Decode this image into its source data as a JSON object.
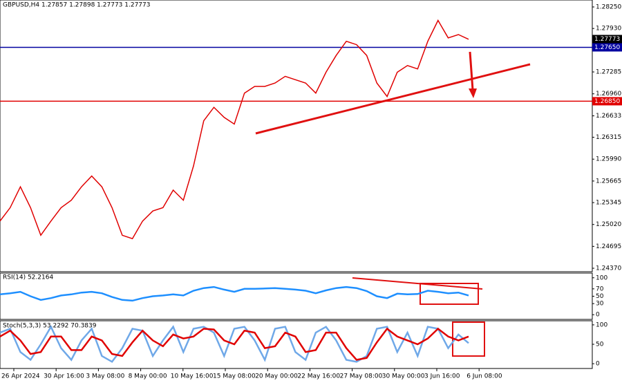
{
  "chart_data": [
    {
      "type": "line",
      "title": "GBPUSD,H4 1.27857 1.27898 1.27773 1.27773",
      "ylim": [
        1.24319,
        1.28353
      ],
      "yticks": [
        {
          "value": 1.2825,
          "label": "1.28250"
        },
        {
          "value": 1.2793,
          "label": "1.27930"
        },
        {
          "value": 1.27285,
          "label": "1.27285"
        },
        {
          "value": 1.2696,
          "label": "1.26960"
        },
        {
          "value": 1.26633,
          "label": "1.26633"
        },
        {
          "value": 1.26315,
          "label": "1.26315"
        },
        {
          "value": 1.2599,
          "label": "1.25990"
        },
        {
          "value": 1.25665,
          "label": "1.25665"
        },
        {
          "value": 1.25345,
          "label": "1.25345"
        },
        {
          "value": 1.2502,
          "label": "1.25020"
        },
        {
          "value": 1.24695,
          "label": "1.24695"
        },
        {
          "value": 1.2437,
          "label": "1.24370"
        }
      ],
      "series": [
        {
          "name": "GBPUSD",
          "color": "#e00000",
          "values": [
            1.2507,
            1.2527,
            1.2558,
            1.2527,
            1.2486,
            1.2507,
            1.2527,
            1.2538,
            1.2558,
            1.2574,
            1.2558,
            1.2527,
            1.2486,
            1.2481,
            1.2507,
            1.2522,
            1.2527,
            1.2553,
            1.2538,
            1.2589,
            1.2656,
            1.2676,
            1.2661,
            1.2651,
            1.2697,
            1.2707,
            1.2707,
            1.2712,
            1.2722,
            1.2717,
            1.2712,
            1.2697,
            1.2728,
            1.2753,
            1.2774,
            1.2769,
            1.2753,
            1.2712,
            1.2692,
            1.2728,
            1.2738,
            1.2733,
            1.2774,
            1.2805,
            1.2779,
            1.2784,
            1.2777
          ]
        }
      ],
      "last_price": {
        "value": 1.27773,
        "label": "1.27773"
      },
      "levels": [
        {
          "value": 1.2765,
          "label": "1.27650",
          "color": "#0000a0"
        },
        {
          "value": 1.2685,
          "label": "1.26850",
          "color": "#e00000"
        }
      ]
    },
    {
      "type": "line",
      "title": "RSI(14) 52.2164",
      "ylim": [
        -12.7,
        112.7
      ],
      "yticks": [
        0,
        30,
        50,
        70,
        100
      ],
      "series": [
        {
          "name": "RSI",
          "color": "#1e8fff",
          "values": [
            55,
            58,
            62,
            50,
            40,
            45,
            52,
            55,
            60,
            62,
            58,
            48,
            40,
            38,
            45,
            50,
            52,
            55,
            52,
            65,
            72,
            75,
            68,
            62,
            70,
            70,
            71,
            72,
            70,
            68,
            65,
            58,
            66,
            72,
            75,
            72,
            64,
            50,
            45,
            57,
            55,
            56,
            65,
            62,
            58,
            60,
            52
          ]
        }
      ]
    },
    {
      "type": "line",
      "title": "Stoch(5,3,3) 53.2292 70.3839",
      "ylim": [
        -12.3,
        110.5
      ],
      "yticks": [
        0,
        50,
        100
      ],
      "series": [
        {
          "name": "Main",
          "color": "#6fa8e8",
          "values": [
            80,
            90,
            30,
            10,
            50,
            95,
            40,
            10,
            60,
            90,
            20,
            5,
            40,
            90,
            85,
            20,
            60,
            95,
            30,
            90,
            95,
            80,
            20,
            90,
            95,
            60,
            10,
            90,
            95,
            30,
            10,
            80,
            95,
            60,
            10,
            5,
            20,
            90,
            95,
            30,
            80,
            20,
            95,
            90,
            40,
            75,
            53
          ]
        },
        {
          "name": "Signal",
          "color": "#e00000",
          "values": [
            70,
            85,
            60,
            25,
            30,
            70,
            70,
            35,
            35,
            70,
            60,
            25,
            20,
            55,
            85,
            60,
            45,
            75,
            65,
            70,
            90,
            88,
            60,
            50,
            85,
            80,
            40,
            45,
            80,
            70,
            30,
            35,
            80,
            80,
            40,
            10,
            15,
            55,
            90,
            70,
            60,
            50,
            65,
            90,
            70,
            60,
            70
          ]
        }
      ]
    }
  ],
  "time_axis": [
    "26 Apr 2024",
    "30 Apr 16:00",
    "3 May 08:00",
    "8 May 00:00",
    "10 May 16:00",
    "15 May 08:00",
    "20 May 00:00",
    "22 May 16:00",
    "27 May 08:00",
    "30 May 00:00",
    "3 Jun 16:00",
    "6 Jun 08:00"
  ]
}
